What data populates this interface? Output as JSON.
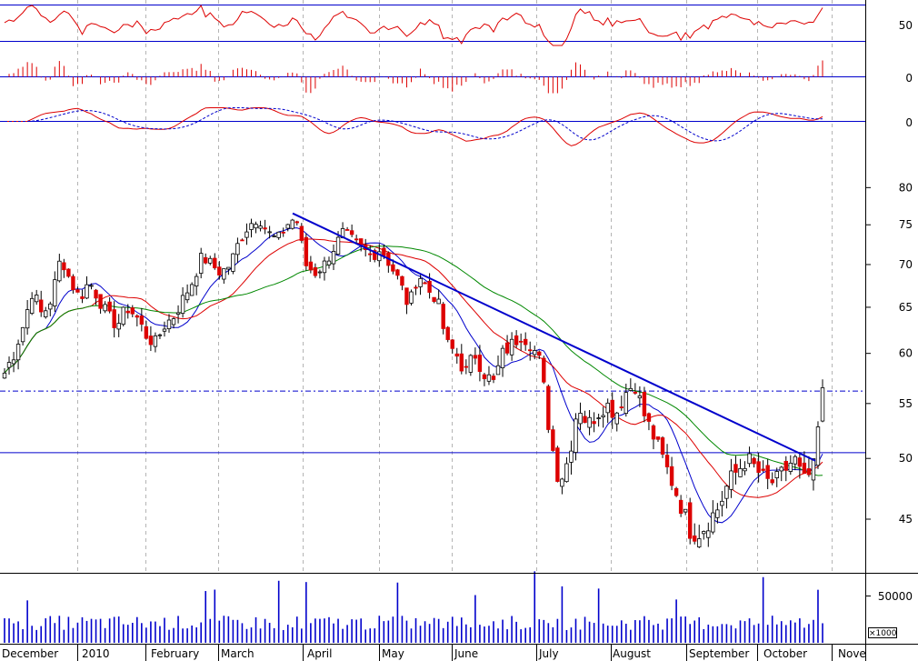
{
  "chart_data": {
    "type": "candlestick",
    "title": "",
    "x_labels": [
      "December",
      "2010",
      "February",
      "March",
      "April",
      "May",
      "June",
      "July",
      "August",
      "September",
      "October",
      "Nove"
    ],
    "price_axis": {
      "ticks": [
        45,
        50,
        55,
        60,
        65,
        70,
        75,
        80
      ],
      "scale": "log",
      "range": [
        41,
        83
      ]
    },
    "volume_axis": {
      "ticks": [
        50000
      ],
      "unit": "×1000"
    },
    "rsi_axis": {
      "ticks": [
        50
      ]
    },
    "histogram_axis": {
      "ticks": [
        0
      ]
    },
    "macd_axis": {
      "ticks": [
        0
      ]
    },
    "grid": {
      "vertical_dashed": true
    },
    "horizontal_levels": [
      50.5,
      56.2
    ],
    "downtrend_line": {
      "from": 76.5,
      "to": 49.8
    },
    "moving_average_colors": {
      "short": "#0000cc",
      "medium": "#dd0000",
      "long": "#008800"
    },
    "candle_colors": {
      "up": "#ffffff",
      "down": "#dd0000",
      "outline": "#000000"
    },
    "price_path": [
      58,
      60,
      63,
      67,
      64,
      66,
      71,
      68,
      66,
      68,
      66,
      64,
      63,
      65,
      64,
      62,
      61,
      63,
      64,
      66,
      68,
      71,
      70,
      69,
      70,
      73,
      75,
      76,
      74,
      73,
      75,
      76,
      70,
      69,
      70,
      72,
      74,
      73,
      72,
      71,
      72,
      70,
      68,
      65,
      69,
      67,
      66,
      61,
      60,
      58,
      60,
      58,
      57,
      60,
      61,
      62,
      61,
      59,
      52,
      48,
      50,
      55,
      53,
      54,
      55,
      54,
      56,
      57,
      54,
      52,
      50,
      48,
      46,
      44,
      44,
      45,
      46,
      48,
      49,
      50,
      49,
      48,
      48,
      49,
      50,
      48,
      49,
      56
    ]
  }
}
